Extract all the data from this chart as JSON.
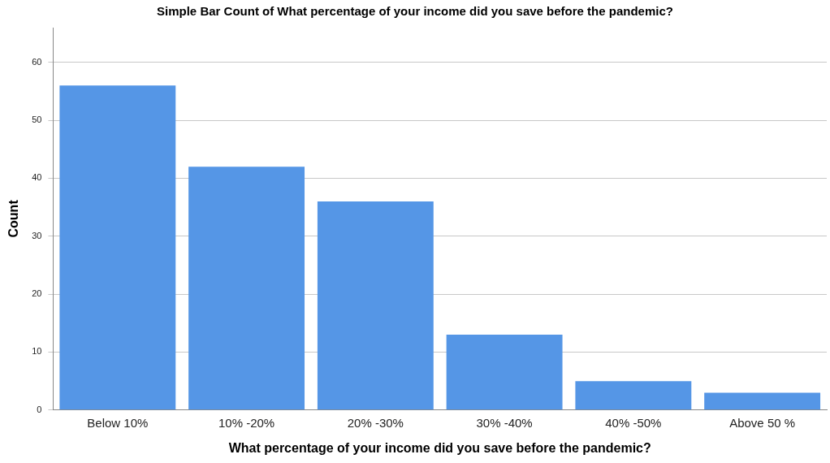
{
  "chart_data": {
    "type": "bar",
    "title": "Simple Bar Count of What percentage of your income did you save before the pandemic?",
    "xlabel": "What percentage of your income did you save before the pandemic?",
    "ylabel": "Count",
    "categories": [
      "Below 10%",
      "10% -20%",
      "20% -30%",
      "30% -40%",
      "40% -50%",
      "Above 50 %"
    ],
    "values": [
      56,
      42,
      36,
      13,
      5,
      3
    ],
    "color": "#5596e6",
    "ylim": [
      0,
      66
    ],
    "yticks": [
      0,
      10,
      20,
      30,
      40,
      50,
      60
    ],
    "grid": "y",
    "legend": false
  }
}
